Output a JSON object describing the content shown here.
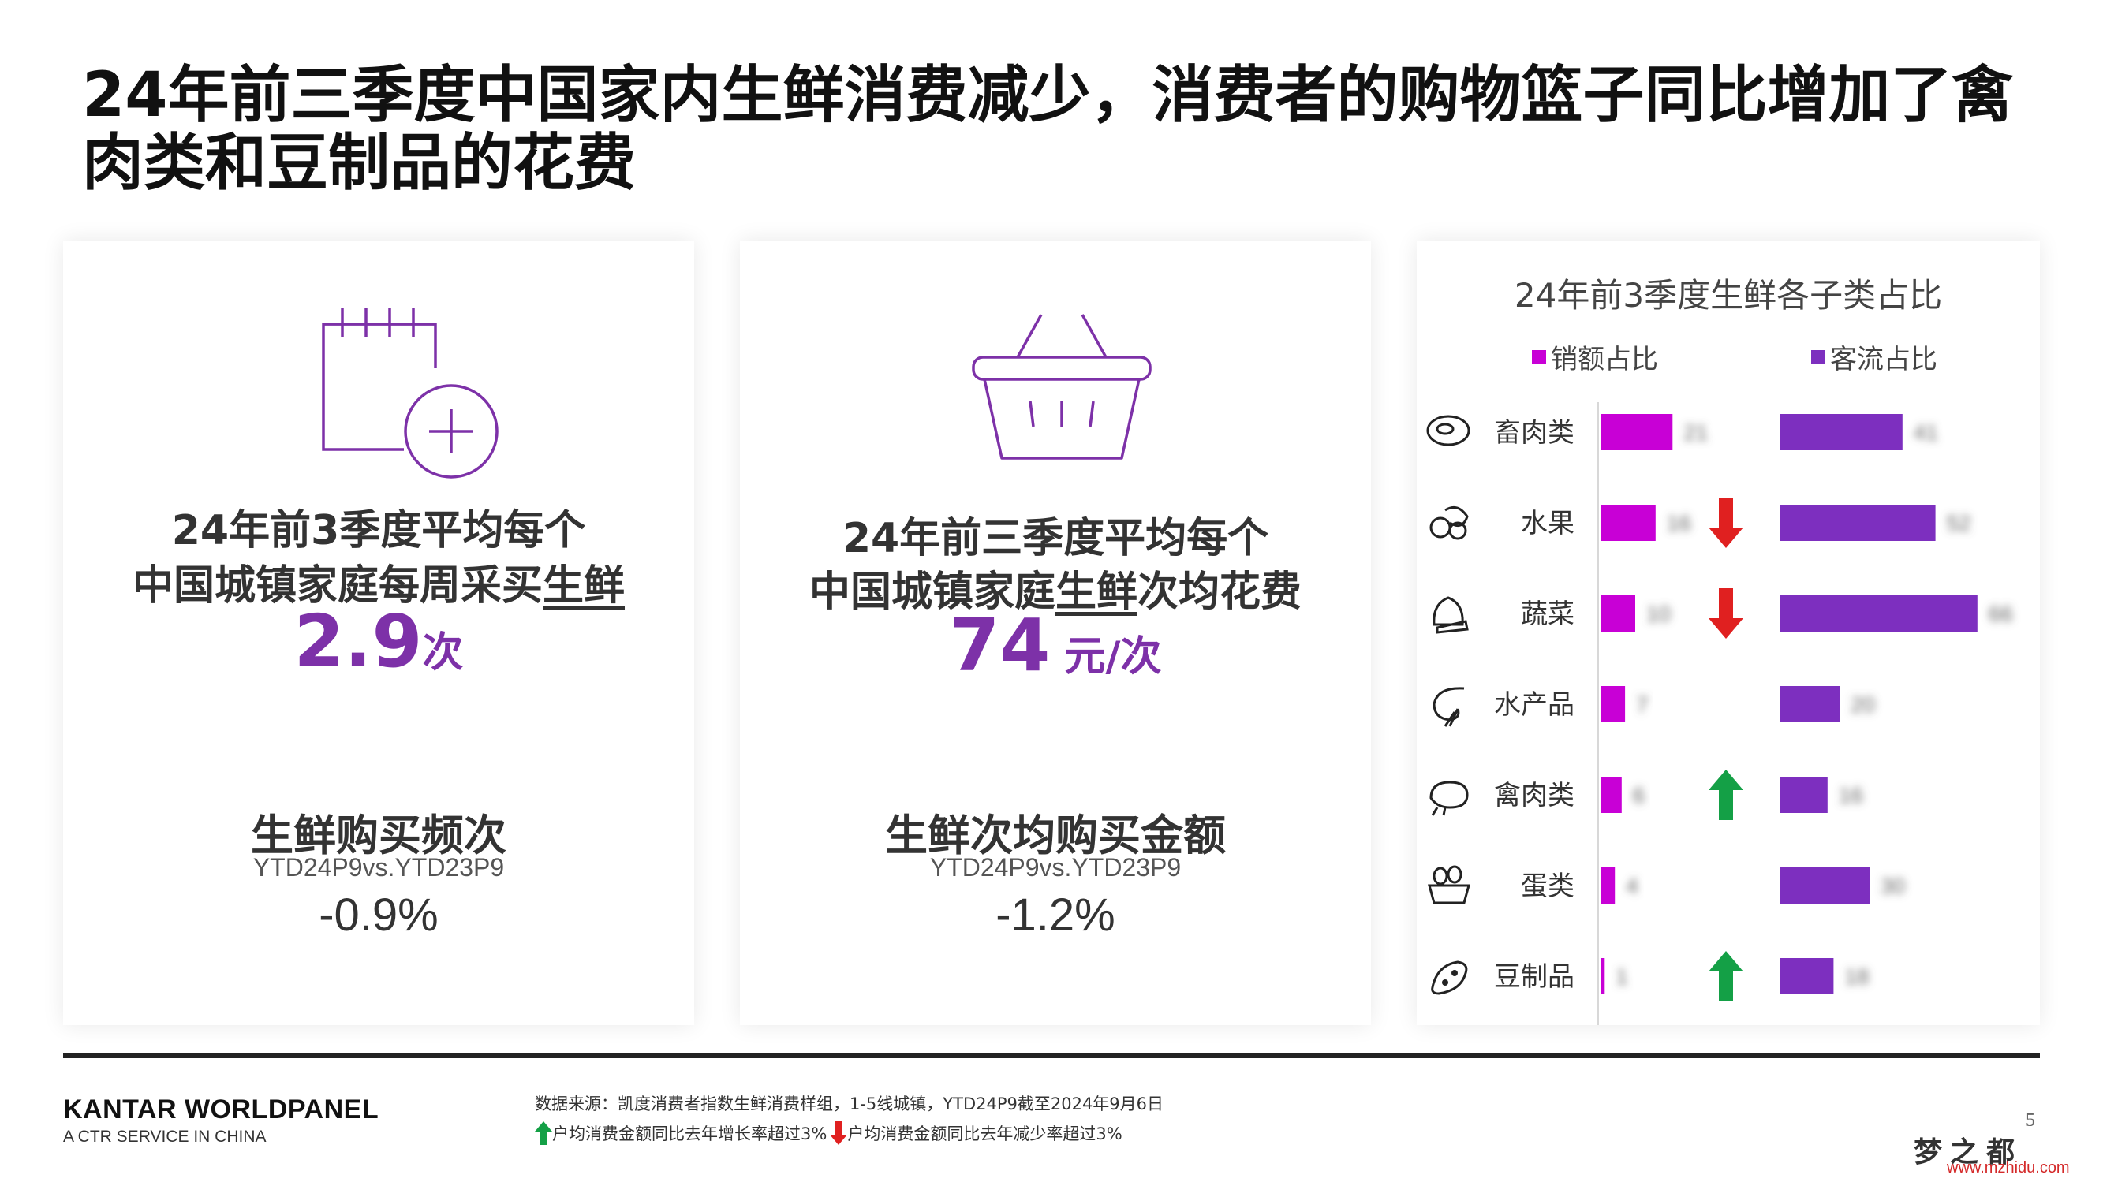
{
  "title": "24年前三季度中国家内生鲜消费减少，消费者的购物篮子同比增加了禽肉类和豆制品的花费",
  "card1": {
    "line1": "24年前3季度平均每个",
    "line2_prefix": "中国城镇家庭每周采买",
    "line2_underlined": "生鲜",
    "value": "2.9",
    "unit": "次",
    "metric_title": "生鲜购买频次",
    "metric_sub": "YTD24P9vs.YTD23P9",
    "metric_value": "-0.9%",
    "icon": "calendar-plus-icon"
  },
  "card2": {
    "line1": "24年前三季度平均每个",
    "line2_prefix": "中国城镇家庭",
    "line2_underlined": "生鲜",
    "line2_suffix": "次均花费",
    "value": "74",
    "unit": " 元/次",
    "metric_title": "生鲜次均购买金额",
    "metric_sub": "YTD24P9vs.YTD23P9",
    "metric_value": "-1.2%",
    "icon": "shopping-basket-icon"
  },
  "chart_data": {
    "type": "bar",
    "title": "24年前3季度生鲜各子类占比",
    "legend_position": "top",
    "categories": [
      "畜肉类",
      "水果",
      "蔬菜",
      "水产品",
      "禽肉类",
      "蛋类",
      "豆制品"
    ],
    "category_icons": [
      "steak-icon",
      "fruit-icon",
      "vegetable-icon",
      "shrimp-icon",
      "chicken-icon",
      "egg-basket-icon",
      "soybean-icon"
    ],
    "series": [
      {
        "name": "销额占比",
        "color": "#c800d6",
        "values": [
          21,
          16,
          10,
          7,
          6,
          4,
          1
        ]
      },
      {
        "name": "客流占比",
        "color": "#7d2fbf",
        "values": [
          41,
          52,
          66,
          20,
          16,
          30,
          18
        ]
      }
    ],
    "yoy_trend": [
      "none",
      "down",
      "down",
      "none",
      "up",
      "none",
      "up"
    ],
    "note": "value labels are blurred in the original image; bar values estimated from bar lengths"
  },
  "footer": {
    "brand": "KANTAR WORLDPANEL",
    "brand_sub": "A CTR SERVICE IN CHINA",
    "source": "数据来源：凯度消费者指数生鲜消费样组，1-5线城镇，YTD24P9截至2024年9月6日",
    "note_up": "户均消费金额同比去年增长率超过3%",
    "note_down": "户均消费金额同比去年减少率超过3%",
    "page": "5",
    "watermark": "梦之都",
    "watermark_url": "www.mzhidu.com"
  },
  "colors": {
    "accent_purple": "#7d31a8",
    "up_green": "#14a046",
    "down_red": "#e02020"
  }
}
